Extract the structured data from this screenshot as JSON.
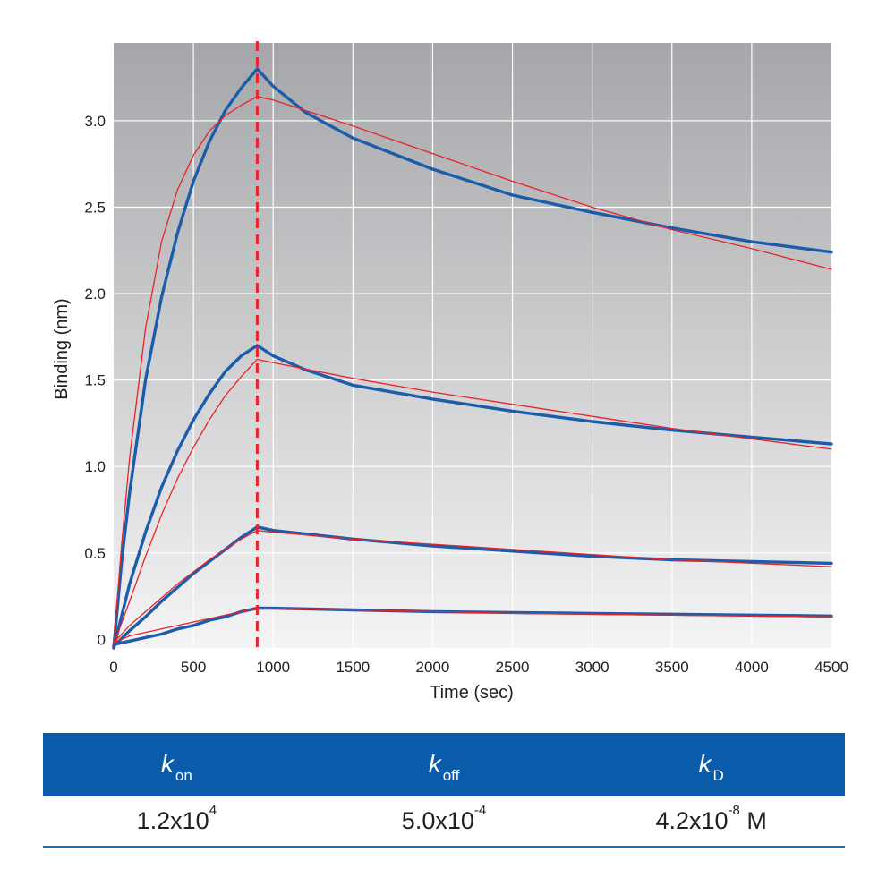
{
  "chart_data": {
    "type": "line",
    "xlabel": "Time (sec)",
    "ylabel": "Binding (nm)",
    "xlim": [
      0,
      4500
    ],
    "ylim": [
      -0.05,
      3.45
    ],
    "x_ticks": [
      0,
      500,
      1000,
      1500,
      2000,
      2500,
      3000,
      3500,
      4000,
      4500
    ],
    "x_tick_labels": [
      "0",
      "500",
      "1000",
      "1500",
      "2000",
      "2500",
      "3000",
      "3500",
      "4000",
      "4500"
    ],
    "y_ticks": [
      0,
      0.5,
      1.0,
      1.5,
      2.0,
      2.5,
      3.0
    ],
    "y_tick_labels": [
      "0",
      "0.5",
      "1.0",
      "1.5",
      "2.0",
      "2.5",
      "3.0"
    ],
    "grid": true,
    "association_end_marker_x": 900,
    "colors": {
      "data": "#1b5cab",
      "fit": "#e8232a",
      "marker": "#e8232a",
      "background_top": "#a5a6a9",
      "background_bottom": "#f4f4f5",
      "grid": "#ffffff"
    },
    "series": [
      {
        "kind": "data",
        "x": [
          0,
          50,
          100,
          200,
          300,
          400,
          500,
          600,
          700,
          800,
          900,
          1000,
          1200,
          1500,
          2000,
          2500,
          3000,
          3500,
          4000,
          4500
        ],
        "y": [
          -0.05,
          0.45,
          0.85,
          1.5,
          1.98,
          2.35,
          2.65,
          2.88,
          3.06,
          3.19,
          3.3,
          3.2,
          3.05,
          2.9,
          2.72,
          2.57,
          2.47,
          2.38,
          2.3,
          2.24
        ]
      },
      {
        "kind": "fit",
        "x": [
          0,
          50,
          100,
          200,
          300,
          400,
          500,
          600,
          700,
          800,
          900,
          1000,
          1500,
          2000,
          2500,
          3000,
          3500,
          4000,
          4500
        ],
        "y": [
          -0.03,
          0.55,
          1.05,
          1.8,
          2.3,
          2.6,
          2.8,
          2.94,
          3.03,
          3.09,
          3.14,
          3.12,
          2.97,
          2.81,
          2.65,
          2.5,
          2.37,
          2.26,
          2.14
        ]
      },
      {
        "kind": "data",
        "x": [
          0,
          100,
          200,
          300,
          400,
          500,
          600,
          700,
          800,
          900,
          1000,
          1200,
          1500,
          2000,
          2500,
          3000,
          3500,
          4000,
          4500
        ],
        "y": [
          -0.05,
          0.32,
          0.62,
          0.88,
          1.09,
          1.27,
          1.42,
          1.55,
          1.64,
          1.7,
          1.64,
          1.56,
          1.47,
          1.39,
          1.32,
          1.26,
          1.21,
          1.17,
          1.13
        ]
      },
      {
        "kind": "fit",
        "x": [
          0,
          100,
          200,
          300,
          400,
          500,
          600,
          700,
          800,
          900,
          1000,
          1500,
          2000,
          2500,
          3000,
          3500,
          4000,
          4500
        ],
        "y": [
          -0.03,
          0.22,
          0.48,
          0.72,
          0.93,
          1.11,
          1.27,
          1.41,
          1.52,
          1.62,
          1.6,
          1.51,
          1.43,
          1.36,
          1.29,
          1.22,
          1.16,
          1.1
        ]
      },
      {
        "kind": "data",
        "x": [
          0,
          100,
          200,
          300,
          400,
          500,
          600,
          700,
          800,
          900,
          1000,
          1500,
          2000,
          2500,
          3000,
          3500,
          4000,
          4500
        ],
        "y": [
          -0.04,
          0.05,
          0.13,
          0.22,
          0.3,
          0.38,
          0.45,
          0.52,
          0.59,
          0.65,
          0.63,
          0.58,
          0.54,
          0.51,
          0.48,
          0.46,
          0.45,
          0.44
        ]
      },
      {
        "kind": "fit",
        "x": [
          0,
          100,
          200,
          300,
          400,
          500,
          600,
          700,
          800,
          900,
          1000,
          1500,
          2000,
          2500,
          3000,
          3500,
          4000,
          4500
        ],
        "y": [
          -0.02,
          0.08,
          0.16,
          0.24,
          0.32,
          0.39,
          0.46,
          0.52,
          0.58,
          0.63,
          0.62,
          0.58,
          0.55,
          0.52,
          0.49,
          0.46,
          0.44,
          0.42
        ]
      },
      {
        "kind": "data",
        "x": [
          0,
          100,
          200,
          300,
          400,
          500,
          600,
          700,
          800,
          900,
          1000,
          1500,
          2000,
          2500,
          3000,
          3500,
          4000,
          4500
        ],
        "y": [
          -0.03,
          -0.01,
          0.01,
          0.03,
          0.06,
          0.08,
          0.11,
          0.13,
          0.16,
          0.18,
          0.18,
          0.17,
          0.16,
          0.155,
          0.15,
          0.145,
          0.14,
          0.135
        ]
      },
      {
        "kind": "fit",
        "x": [
          0,
          100,
          200,
          300,
          400,
          500,
          600,
          700,
          800,
          900,
          1000,
          1500,
          2000,
          2500,
          3000,
          3500,
          4000,
          4500
        ],
        "y": [
          -0.02,
          0.02,
          0.04,
          0.06,
          0.08,
          0.1,
          0.12,
          0.14,
          0.16,
          0.18,
          0.18,
          0.17,
          0.16,
          0.15,
          0.145,
          0.14,
          0.135,
          0.13
        ]
      }
    ]
  },
  "table": {
    "headers": [
      {
        "symbol": "k",
        "sub": "on"
      },
      {
        "symbol": "k",
        "sub": "off"
      },
      {
        "symbol": "k",
        "sub": "D"
      }
    ],
    "values": [
      {
        "base": "1.2x10",
        "exp": "4",
        "unit": ""
      },
      {
        "base": "5.0x10",
        "exp": "-4",
        "unit": ""
      },
      {
        "base": "4.2x10",
        "exp": "-8",
        "unit": " M"
      }
    ]
  }
}
